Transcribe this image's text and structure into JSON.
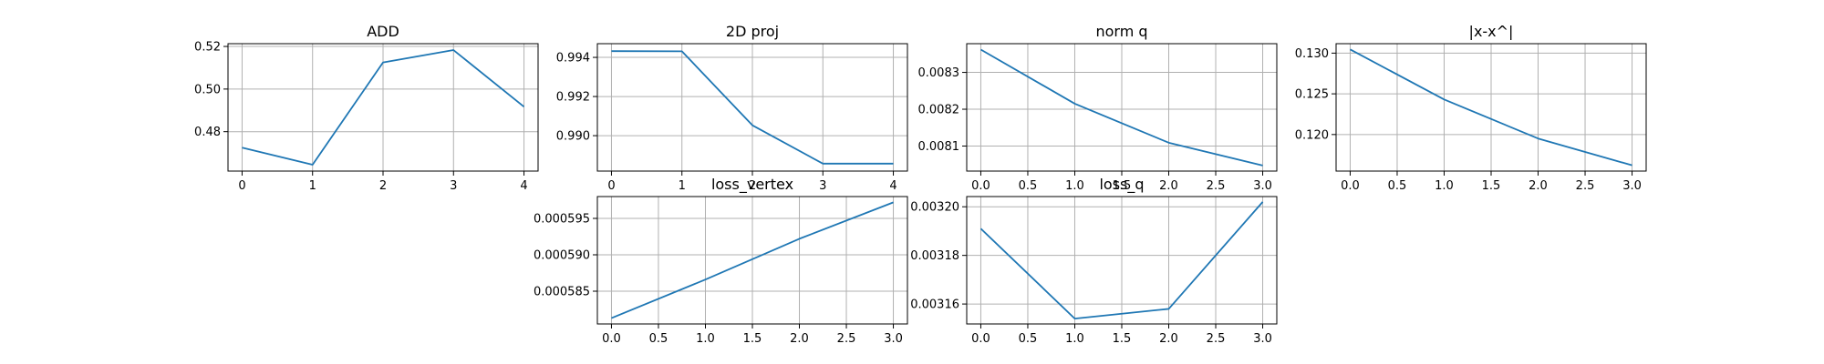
{
  "figure": {
    "line_color": "#1f77b4"
  },
  "chart_data": [
    {
      "type": "line",
      "title": "ADD",
      "x": [
        0,
        1,
        2,
        3,
        4
      ],
      "y": [
        0.4725,
        0.4645,
        0.5125,
        0.5183,
        0.4917
      ],
      "xlim": [
        -0.2,
        4.2
      ],
      "ylim": [
        0.4615,
        0.5213
      ],
      "xticks": [
        0,
        1,
        2,
        3,
        4
      ],
      "xtick_labels": [
        "0",
        "1",
        "2",
        "3",
        "4"
      ],
      "yticks": [
        0.48,
        0.5,
        0.52
      ],
      "ytick_labels": [
        "0.48",
        "0.50",
        "0.52"
      ],
      "grid": true
    },
    {
      "type": "line",
      "title": "2D proj",
      "x": [
        0,
        1,
        2,
        3,
        4
      ],
      "y": [
        0.99432,
        0.99431,
        0.99053,
        0.98857,
        0.98857
      ],
      "xlim": [
        -0.2,
        4.2
      ],
      "ylim": [
        0.98819,
        0.9947
      ],
      "xticks": [
        0,
        1,
        2,
        3,
        4
      ],
      "xtick_labels": [
        "0",
        "1",
        "2",
        "3",
        "4"
      ],
      "yticks": [
        0.99,
        0.992,
        0.994
      ],
      "ytick_labels": [
        "0.990",
        "0.992",
        "0.994"
      ],
      "grid": true
    },
    {
      "type": "line",
      "title": "norm q",
      "x": [
        0,
        1,
        2,
        3
      ],
      "y": [
        0.008362,
        0.008215,
        0.008109,
        0.008047
      ],
      "xlim": [
        -0.15,
        3.15
      ],
      "ylim": [
        0.008032,
        0.008378
      ],
      "xticks": [
        0,
        0.5,
        1,
        1.5,
        2,
        2.5,
        3
      ],
      "xtick_labels": [
        "0.0",
        "0.5",
        "1.0",
        "1.5",
        "2.0",
        "2.5",
        "3.0"
      ],
      "yticks": [
        0.0081,
        0.0082,
        0.0083
      ],
      "ytick_labels": [
        "0.0081",
        "0.0082",
        "0.0083"
      ],
      "grid": true
    },
    {
      "type": "line",
      "title": "|x-x^|",
      "x": [
        0,
        1,
        2,
        3
      ],
      "y": [
        0.13045,
        0.12431,
        0.11951,
        0.11622
      ],
      "xlim": [
        -0.15,
        3.15
      ],
      "ylim": [
        0.11551,
        0.13116
      ],
      "xticks": [
        0,
        0.5,
        1,
        1.5,
        2,
        2.5,
        3
      ],
      "xtick_labels": [
        "0.0",
        "0.5",
        "1.0",
        "1.5",
        "2.0",
        "2.5",
        "3.0"
      ],
      "yticks": [
        0.12,
        0.125,
        0.13
      ],
      "ytick_labels": [
        "0.120",
        "0.125",
        "0.130"
      ],
      "grid": true
    },
    {
      "type": "line",
      "title": "loss_vertex",
      "x": [
        0,
        1,
        2,
        3
      ],
      "y": [
        0.0005813,
        0.0005866,
        0.0005922,
        0.0005972
      ],
      "xlim": [
        -0.15,
        3.15
      ],
      "ylim": [
        0.0005805,
        0.000598
      ],
      "xticks": [
        0,
        0.5,
        1,
        1.5,
        2,
        2.5,
        3
      ],
      "xtick_labels": [
        "0.0",
        "0.5",
        "1.0",
        "1.5",
        "2.0",
        "2.5",
        "3.0"
      ],
      "yticks": [
        0.000585,
        0.00059,
        0.000595
      ],
      "ytick_labels": [
        "0.000585",
        "0.000590",
        "0.000595"
      ],
      "grid": true
    },
    {
      "type": "line",
      "title": "loss_q",
      "x": [
        0,
        1,
        2,
        3
      ],
      "y": [
        0.003191,
        0.003154,
        0.003158,
        0.003202
      ],
      "xlim": [
        -0.15,
        3.15
      ],
      "ylim": [
        0.0031518,
        0.0032042
      ],
      "xticks": [
        0,
        0.5,
        1,
        1.5,
        2,
        2.5,
        3
      ],
      "xtick_labels": [
        "0.0",
        "0.5",
        "1.0",
        "1.5",
        "2.0",
        "2.5",
        "3.0"
      ],
      "yticks": [
        0.00316,
        0.00318,
        0.0032
      ],
      "ytick_labels": [
        "0.00316",
        "0.00318",
        "0.00320"
      ],
      "grid": true
    }
  ]
}
